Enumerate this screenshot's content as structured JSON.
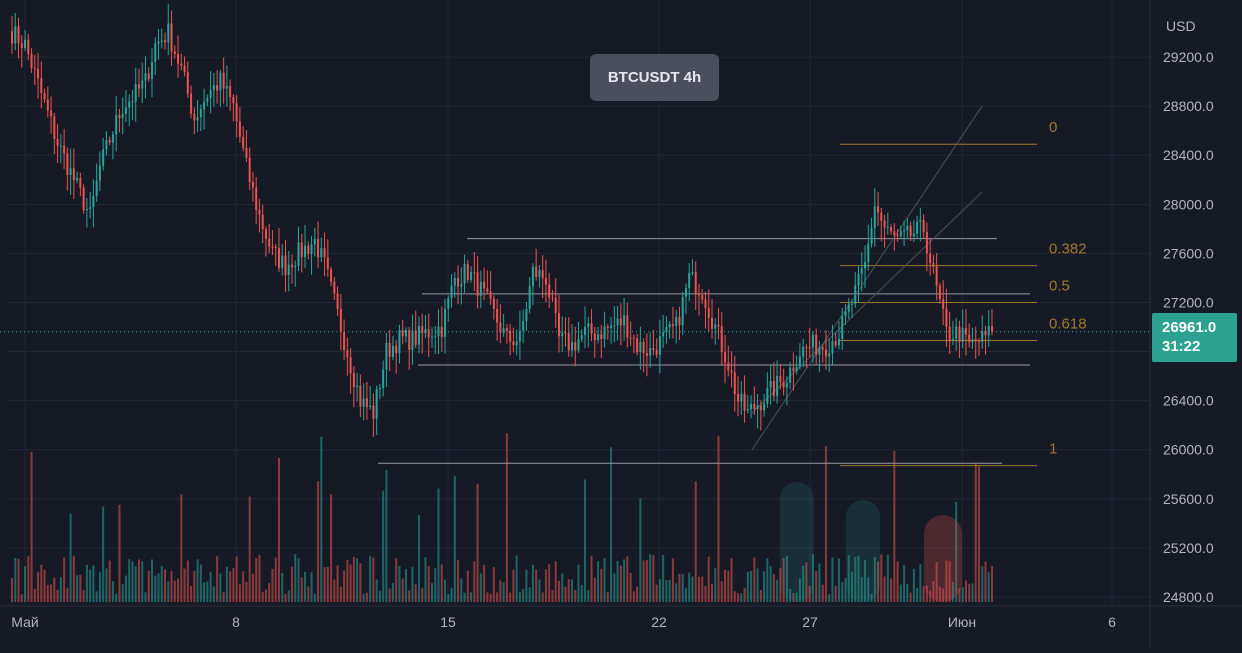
{
  "chart_data": {
    "type": "candlestick",
    "title": "BTCUSDT 4h",
    "symbol": "BTCUSDT",
    "interval": "4h",
    "currency": "USD",
    "last_price": "26961.0",
    "countdown": "31:22",
    "ylim": [
      24700,
      29600
    ],
    "y_ticks": [
      "29200.0",
      "28800.0",
      "28400.0",
      "28000.0",
      "27600.0",
      "27200.0",
      "26800.0",
      "26400.0",
      "26000.0",
      "25600.0",
      "25200.0",
      "24800.0"
    ],
    "x_ticks": [
      "Май",
      "8",
      "15",
      "22",
      "27",
      "Июн",
      "6"
    ],
    "fib_labels": [
      "0",
      "0.382",
      "0.5",
      "0.618",
      "1"
    ],
    "fib_levels": [
      28490,
      27500,
      27200,
      26890,
      25870
    ],
    "range_levels": [
      27720,
      27270,
      26690,
      25890
    ],
    "price_path": [
      [
        0,
        29400
      ],
      [
        4,
        29300
      ],
      [
        9,
        28900
      ],
      [
        14,
        28500
      ],
      [
        19,
        28200
      ],
      [
        24,
        27900
      ],
      [
        27,
        28300
      ],
      [
        31,
        28600
      ],
      [
        34,
        28800
      ],
      [
        38,
        28900
      ],
      [
        41,
        29000
      ],
      [
        44,
        29300
      ],
      [
        48,
        29400
      ],
      [
        52,
        29100
      ],
      [
        56,
        28700
      ],
      [
        60,
        28900
      ],
      [
        64,
        29000
      ],
      [
        68,
        28800
      ],
      [
        72,
        28300
      ],
      [
        76,
        27900
      ],
      [
        80,
        27600
      ],
      [
        84,
        27500
      ],
      [
        88,
        27600
      ],
      [
        93,
        27700
      ],
      [
        96,
        27500
      ],
      [
        99,
        27200
      ],
      [
        103,
        26800
      ],
      [
        107,
        26400
      ],
      [
        111,
        26300
      ],
      [
        115,
        26800
      ],
      [
        119,
        26900
      ],
      [
        123,
        26900
      ],
      [
        127,
        26950
      ],
      [
        132,
        27000
      ],
      [
        136,
        27400
      ],
      [
        140,
        27450
      ],
      [
        144,
        27300
      ],
      [
        148,
        27100
      ],
      [
        152,
        26900
      ],
      [
        156,
        26900
      ],
      [
        160,
        27450
      ],
      [
        164,
        27400
      ],
      [
        168,
        26900
      ],
      [
        172,
        26850
      ],
      [
        176,
        26950
      ],
      [
        180,
        26950
      ],
      [
        184,
        27000
      ],
      [
        188,
        27050
      ],
      [
        192,
        26850
      ],
      [
        196,
        26800
      ],
      [
        200,
        26900
      ],
      [
        204,
        27000
      ],
      [
        208,
        27400
      ],
      [
        212,
        27300
      ],
      [
        216,
        27000
      ],
      [
        220,
        26700
      ],
      [
        223,
        26400
      ],
      [
        226,
        26300
      ],
      [
        230,
        26400
      ],
      [
        234,
        26500
      ],
      [
        238,
        26600
      ],
      [
        242,
        26800
      ],
      [
        246,
        26850
      ],
      [
        250,
        26850
      ],
      [
        254,
        26950
      ],
      [
        258,
        27200
      ],
      [
        262,
        27500
      ],
      [
        265,
        28000
      ],
      [
        268,
        27800
      ],
      [
        272,
        27700
      ],
      [
        276,
        27750
      ],
      [
        280,
        27800
      ],
      [
        284,
        27300
      ],
      [
        287,
        26950
      ],
      [
        291,
        26950
      ],
      [
        294,
        26850
      ],
      [
        298,
        26900
      ],
      [
        301,
        26961
      ]
    ]
  }
}
